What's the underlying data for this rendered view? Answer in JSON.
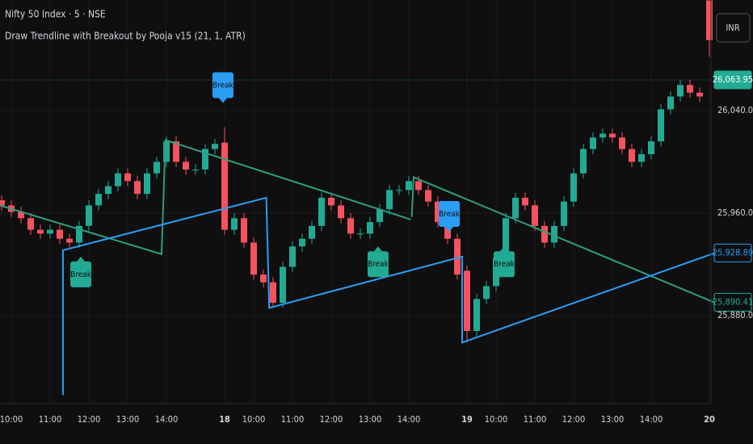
{
  "header": {
    "symbol": "Nifty 50 Index · 5 · NSE",
    "indicator": "Draw Trendline with Breakout by Pooja v15 (21, 1, ATR)",
    "currency": "INR"
  },
  "chart_data": {
    "type": "candlestick",
    "categories": [
      null,
      "10:00",
      null,
      null,
      null,
      "11:00",
      null,
      null,
      null,
      "12:00",
      null,
      null,
      null,
      "13:00",
      null,
      null,
      null,
      "14:00",
      null,
      null,
      null,
      null,
      null,
      "18",
      null,
      null,
      "10:00",
      null,
      null,
      null,
      "11:00",
      null,
      null,
      null,
      "12:00",
      null,
      null,
      null,
      "13:00",
      null,
      null,
      null,
      "14:00",
      null,
      null,
      null,
      null,
      null,
      "19",
      null,
      null,
      "10:00",
      null,
      null,
      null,
      "11:00",
      null,
      null,
      null,
      "12:00",
      null,
      null,
      null,
      "13:00",
      null,
      null,
      null,
      "14:00",
      null,
      null,
      null,
      null,
      null,
      "20"
    ],
    "open": [
      25970,
      25966,
      25961,
      25956,
      25947,
      25944,
      25947,
      25940,
      25937,
      25950,
      25966,
      25975,
      25981,
      25991,
      25985,
      25975,
      25991,
      26000,
      26016,
      26000,
      25994,
      25994,
      26010,
      26015,
      25947,
      25956,
      25937,
      25912,
      25906,
      25890,
      25918,
      25934,
      25940,
      25950,
      25972,
      25966,
      25956,
      25944,
      25944,
      25953,
      25963,
      25978,
      25978,
      25985,
      25978,
      25969,
      25953,
      25940,
      25915,
      25868,
      25893,
      25903,
      25925,
      25956,
      25972,
      25966,
      25950,
      25937,
      25950,
      25969,
      25991,
      26010,
      26019,
      26022,
      26019,
      26010,
      26000,
      26006,
      26016,
      26041,
      26051,
      26060,
      26054,
      26126
    ],
    "high": [
      25974,
      25970,
      25965,
      25960,
      25951,
      25951,
      25951,
      25944,
      25954,
      25970,
      25979,
      25985,
      25995,
      25995,
      25989,
      25995,
      26004,
      26020,
      26020,
      26004,
      25998,
      26014,
      26018,
      26027,
      25960,
      25960,
      25941,
      25916,
      25910,
      25922,
      25938,
      25944,
      25954,
      25976,
      25976,
      25970,
      25960,
      25948,
      25957,
      25967,
      25982,
      25982,
      25989,
      25989,
      25982,
      25973,
      25957,
      25944,
      25919,
      25897,
      25907,
      25929,
      25960,
      25976,
      25976,
      25970,
      25954,
      25954,
      25973,
      25995,
      26014,
      26023,
      26026,
      26026,
      26023,
      26014,
      26010,
      26020,
      26045,
      26055,
      26064,
      26064,
      26058,
      26126
    ],
    "low": [
      25962,
      25957,
      25952,
      25943,
      25940,
      25940,
      25936,
      25933,
      25933,
      25946,
      25962,
      25971,
      25977,
      25981,
      25971,
      25971,
      25987,
      25996,
      25996,
      25990,
      25990,
      25990,
      26006,
      25943,
      25943,
      25933,
      25908,
      25902,
      25886,
      25886,
      25914,
      25930,
      25936,
      25946,
      25962,
      25952,
      25940,
      25940,
      25940,
      25949,
      25959,
      25974,
      25974,
      25974,
      25965,
      25949,
      25936,
      25908,
      25859,
      25864,
      25889,
      25899,
      25921,
      25952,
      25962,
      25946,
      25933,
      25933,
      25946,
      25965,
      25987,
      26006,
      26015,
      26015,
      26006,
      25996,
      25996,
      26002,
      26012,
      26037,
      26047,
      26050,
      26047,
      26082
    ],
    "close": [
      25966,
      25961,
      25956,
      25947,
      25944,
      25947,
      25940,
      25937,
      25950,
      25966,
      25975,
      25981,
      25991,
      25985,
      25975,
      25991,
      26000,
      26016,
      26000,
      25994,
      25994,
      26010,
      26014,
      25947,
      25956,
      25937,
      25912,
      25906,
      25890,
      25918,
      25934,
      25940,
      25950,
      25972,
      25966,
      25956,
      25944,
      25944,
      25953,
      25963,
      25978,
      25978,
      25985,
      25978,
      25969,
      25953,
      25940,
      25912,
      25868,
      25893,
      25903,
      25925,
      25956,
      25972,
      25966,
      25950,
      25937,
      25950,
      25969,
      25991,
      26010,
      26019,
      26022,
      26019,
      26010,
      26000,
      26006,
      26016,
      26041,
      26051,
      26060,
      26054,
      26051,
      26095
    ],
    "up_color": "#22ab94",
    "down_color": "#f7525f",
    "ylim": [
      25811.3,
      26126.3
    ],
    "yticks": [
      {
        "value": 26040,
        "label": "26,040.00"
      },
      {
        "value": 25960,
        "label": "25,960.00"
      },
      {
        "value": 25880,
        "label": "25,880.00"
      }
    ],
    "grid": true,
    "trendlines": [
      {
        "color": "#2e9e7f",
        "x": [
          -0.17,
          16.5,
          16.9,
          42.2
        ],
        "y": [
          25966,
          25928,
          26017,
          25955
        ]
      },
      {
        "color": "#2e9e7f",
        "x": [
          42.3,
          42.5,
          73.6
        ],
        "y": [
          25957,
          25988,
          25890
        ]
      },
      {
        "color": "#2a9df4",
        "x": [
          6.33,
          6.33,
          27.3,
          27.6,
          47.5,
          47.5,
          73.6
        ],
        "y": [
          25818,
          25931,
          25972,
          25886,
          25926,
          25859,
          25929
        ]
      }
    ],
    "breaks": [
      {
        "text": "Break",
        "color": "#22ab94",
        "position": "below",
        "x": 8.17,
        "y": 25926
      },
      {
        "text": "Break",
        "color": "#2a9df4",
        "position": "above",
        "x": 22.83,
        "y": 26046
      },
      {
        "text": "Break",
        "color": "#22ab94",
        "position": "below",
        "x": 38.83,
        "y": 25934
      },
      {
        "text": "Break",
        "color": "#2a9df4",
        "position": "above",
        "x": 46.17,
        "y": 25945.5
      },
      {
        "text": "Break",
        "color": "#22ab94",
        "position": "below",
        "x": 51.83,
        "y": 25934
      }
    ],
    "price_labels": [
      {
        "value": 26063.95,
        "label": "26,063.95",
        "color": "#22ab94",
        "style": "filled"
      },
      {
        "value": 25928.89,
        "label": "25,928.89",
        "color": "#2a9df4",
        "style": "outline"
      },
      {
        "value": 25890.41,
        "label": "25,890.41",
        "color": "#22ab94",
        "style": "outline"
      }
    ]
  }
}
